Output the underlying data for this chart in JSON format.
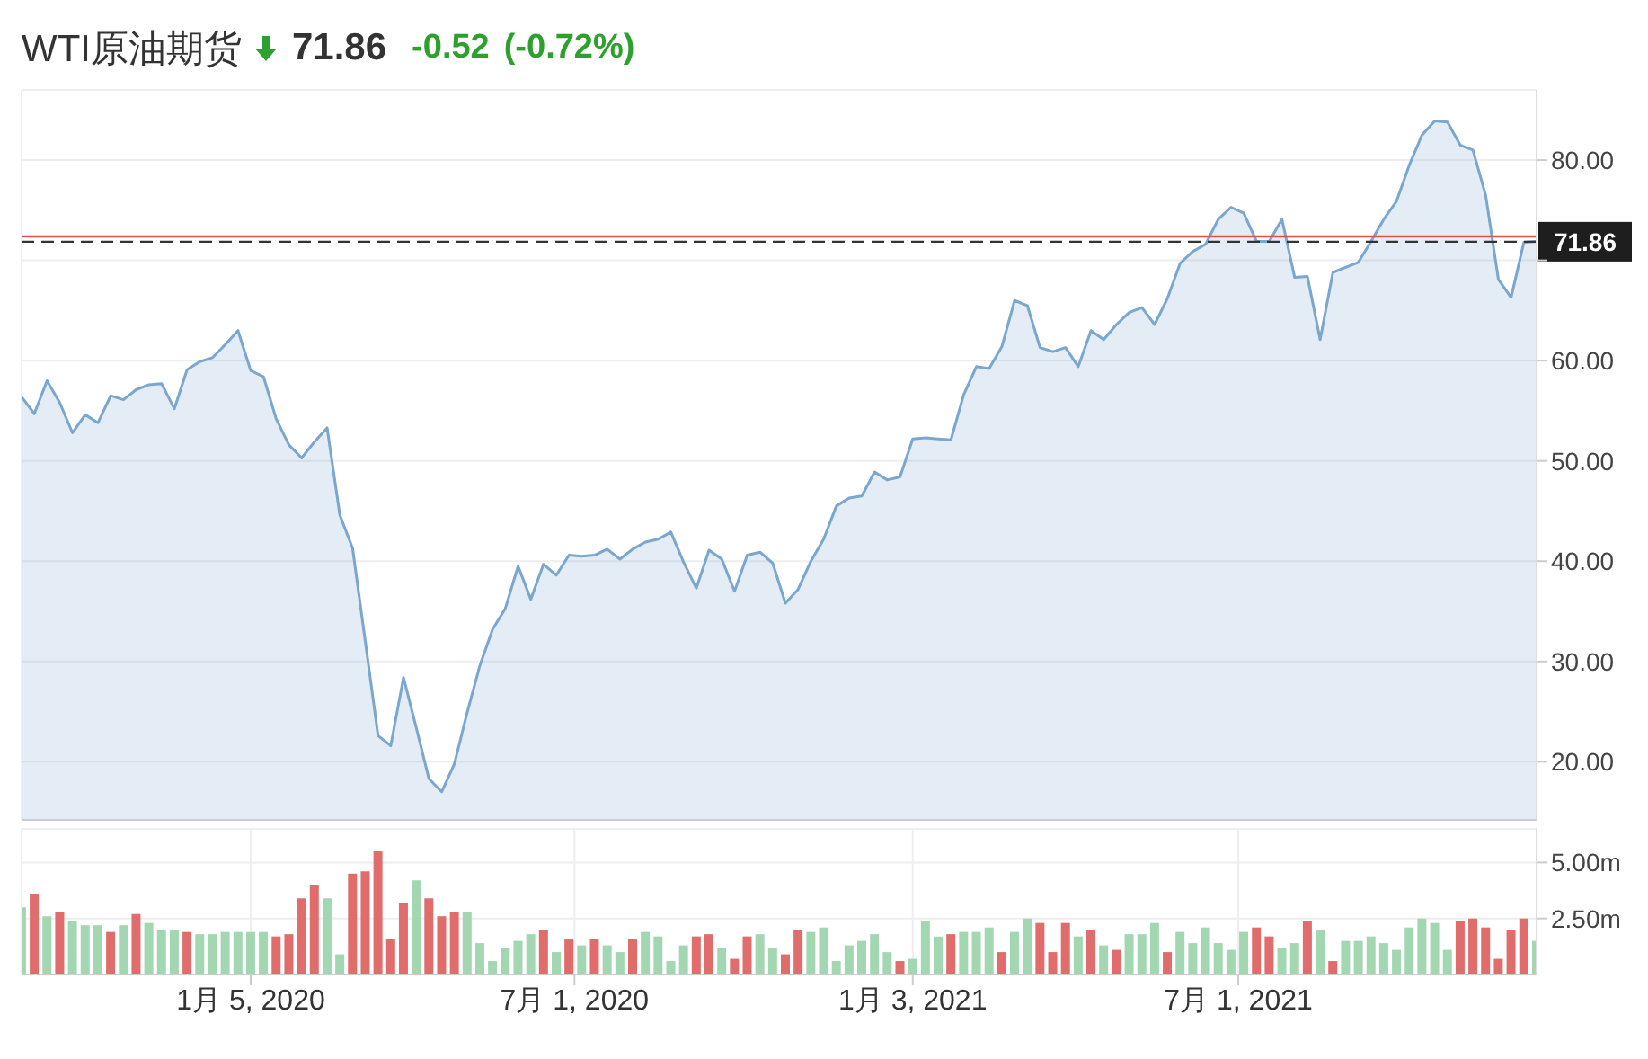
{
  "chart_data": [
    {
      "type": "area",
      "title": "WTI原油期货",
      "annotations": [
        "71.86",
        "-0.52",
        "(-0.72%)"
      ],
      "x": [
        "2019-09-01",
        "2019-09-08",
        "2019-09-15",
        "2019-09-22",
        "2019-09-29",
        "2019-10-06",
        "2019-10-13",
        "2019-10-20",
        "2019-10-27",
        "2019-11-03",
        "2019-11-10",
        "2019-11-17",
        "2019-11-24",
        "2019-12-01",
        "2019-12-08",
        "2019-12-15",
        "2019-12-22",
        "2019-12-29",
        "2020-01-05",
        "2020-01-12",
        "2020-01-19",
        "2020-01-26",
        "2020-02-02",
        "2020-02-09",
        "2020-02-16",
        "2020-02-23",
        "2020-03-01",
        "2020-03-08",
        "2020-03-15",
        "2020-03-22",
        "2020-03-29",
        "2020-04-05",
        "2020-04-12",
        "2020-04-19",
        "2020-04-26",
        "2020-05-03",
        "2020-05-10",
        "2020-05-17",
        "2020-05-24",
        "2020-05-31",
        "2020-06-07",
        "2020-06-14",
        "2020-06-21",
        "2020-06-28",
        "2020-07-05",
        "2020-07-12",
        "2020-07-19",
        "2020-07-26",
        "2020-08-02",
        "2020-08-09",
        "2020-08-16",
        "2020-08-23",
        "2020-08-30",
        "2020-09-06",
        "2020-09-13",
        "2020-09-20",
        "2020-09-27",
        "2020-10-04",
        "2020-10-11",
        "2020-10-18",
        "2020-10-25",
        "2020-11-01",
        "2020-11-08",
        "2020-11-15",
        "2020-11-22",
        "2020-11-29",
        "2020-12-06",
        "2020-12-13",
        "2020-12-20",
        "2020-12-27",
        "2021-01-03",
        "2021-01-10",
        "2021-01-17",
        "2021-01-24",
        "2021-01-31",
        "2021-02-07",
        "2021-02-14",
        "2021-02-21",
        "2021-02-28",
        "2021-03-07",
        "2021-03-14",
        "2021-03-21",
        "2021-03-28",
        "2021-04-04",
        "2021-04-11",
        "2021-04-18",
        "2021-04-25",
        "2021-05-02",
        "2021-05-09",
        "2021-05-16",
        "2021-05-23",
        "2021-05-30",
        "2021-06-06",
        "2021-06-13",
        "2021-06-20",
        "2021-06-27",
        "2021-07-04",
        "2021-07-11",
        "2021-07-18",
        "2021-07-25",
        "2021-08-01",
        "2021-08-08",
        "2021-08-15",
        "2021-08-22",
        "2021-08-29",
        "2021-09-05",
        "2021-09-12",
        "2021-09-19",
        "2021-09-26",
        "2021-10-03",
        "2021-10-10",
        "2021-10-17",
        "2021-10-24",
        "2021-10-31",
        "2021-11-07",
        "2021-11-14",
        "2021-11-21",
        "2021-11-28",
        "2021-12-05",
        "2021-12-12"
      ],
      "series": [
        {
          "color": "#7aa6cf",
          "values": [
            56.4,
            54.7,
            58.0,
            55.8,
            52.8,
            54.6,
            53.8,
            56.5,
            56.1,
            57.1,
            57.6,
            57.7,
            55.2,
            59.1,
            59.9,
            60.3,
            61.6,
            63.0,
            59.0,
            58.4,
            54.2,
            51.6,
            50.3,
            51.9,
            53.3,
            44.6,
            41.3,
            32.0,
            22.6,
            21.6,
            28.4,
            23.4,
            18.3,
            17.0,
            19.8,
            24.9,
            29.6,
            33.2,
            35.3,
            39.5,
            36.2,
            39.7,
            38.6,
            40.6,
            40.5,
            40.6,
            41.2,
            40.2,
            41.2,
            41.9,
            42.2,
            42.9,
            39.9,
            37.3,
            41.1,
            40.2,
            37.0,
            40.6,
            40.9,
            39.8,
            35.8,
            37.2,
            40.0,
            42.2,
            45.5,
            46.3,
            46.5,
            48.9,
            48.1,
            48.4,
            52.2,
            52.3,
            52.2,
            52.1,
            56.6,
            59.4,
            59.2,
            61.4,
            66.0,
            65.5,
            61.3,
            60.9,
            61.3,
            59.4,
            63.0,
            62.1,
            63.6,
            64.8,
            65.3,
            63.6,
            66.2,
            69.7,
            70.9,
            71.6,
            74.1,
            75.3,
            74.7,
            71.9,
            71.9,
            74.1,
            68.3,
            68.4,
            62.1,
            68.8,
            69.3,
            69.8,
            71.9,
            74.1,
            75.9,
            79.5,
            82.5,
            83.9,
            83.8,
            81.5,
            81.0,
            76.5,
            68.1,
            66.3,
            71.8,
            71.9
          ]
        }
      ],
      "xlim": [
        "2019-09-01",
        "2021-12-12"
      ],
      "xticks": [
        {
          "value": "2020-01-05",
          "label": null
        },
        {
          "value": "2020-07-01",
          "label": null
        },
        {
          "value": "2021-01-03",
          "label": null
        },
        {
          "value": "2021-07-01",
          "label": null
        }
      ],
      "ylim": [
        14.2,
        87
      ],
      "yticks": [
        {
          "value": 20,
          "label": "20.00"
        },
        {
          "value": 30,
          "label": "30.00"
        },
        {
          "value": 40,
          "label": "40.00"
        },
        {
          "value": 50,
          "label": "50.00"
        },
        {
          "value": 60,
          "label": "60.00"
        },
        {
          "value": 70,
          "label": null
        },
        {
          "value": 80,
          "label": "80.00"
        }
      ],
      "ref_lines": [
        {
          "axis": "y",
          "value": 72.38,
          "color": "#d9534f"
        },
        {
          "axis": "y",
          "value": 71.86,
          "label": "71.86",
          "color": "#333333",
          "line_style": "dashed"
        }
      ],
      "grid": true,
      "tick_labels": "y"
    },
    {
      "type": "bar",
      "x": [
        "2019-09-01",
        "2019-09-08",
        "2019-09-15",
        "2019-09-22",
        "2019-09-29",
        "2019-10-06",
        "2019-10-13",
        "2019-10-20",
        "2019-10-27",
        "2019-11-03",
        "2019-11-10",
        "2019-11-17",
        "2019-11-24",
        "2019-12-01",
        "2019-12-08",
        "2019-12-15",
        "2019-12-22",
        "2019-12-29",
        "2020-01-05",
        "2020-01-12",
        "2020-01-19",
        "2020-01-26",
        "2020-02-02",
        "2020-02-09",
        "2020-02-16",
        "2020-02-23",
        "2020-03-01",
        "2020-03-08",
        "2020-03-15",
        "2020-03-22",
        "2020-03-29",
        "2020-04-05",
        "2020-04-12",
        "2020-04-19",
        "2020-04-26",
        "2020-05-03",
        "2020-05-10",
        "2020-05-17",
        "2020-05-24",
        "2020-05-31",
        "2020-06-07",
        "2020-06-14",
        "2020-06-21",
        "2020-06-28",
        "2020-07-05",
        "2020-07-12",
        "2020-07-19",
        "2020-07-26",
        "2020-08-02",
        "2020-08-09",
        "2020-08-16",
        "2020-08-23",
        "2020-08-30",
        "2020-09-06",
        "2020-09-13",
        "2020-09-20",
        "2020-09-27",
        "2020-10-04",
        "2020-10-11",
        "2020-10-18",
        "2020-10-25",
        "2020-11-01",
        "2020-11-08",
        "2020-11-15",
        "2020-11-22",
        "2020-11-29",
        "2020-12-06",
        "2020-12-13",
        "2020-12-20",
        "2020-12-27",
        "2021-01-03",
        "2021-01-10",
        "2021-01-17",
        "2021-01-24",
        "2021-01-31",
        "2021-02-07",
        "2021-02-14",
        "2021-02-21",
        "2021-02-28",
        "2021-03-07",
        "2021-03-14",
        "2021-03-21",
        "2021-03-28",
        "2021-04-04",
        "2021-04-11",
        "2021-04-18",
        "2021-04-25",
        "2021-05-02",
        "2021-05-09",
        "2021-05-16",
        "2021-05-23",
        "2021-05-30",
        "2021-06-06",
        "2021-06-13",
        "2021-06-20",
        "2021-06-27",
        "2021-07-04",
        "2021-07-11",
        "2021-07-18",
        "2021-07-25",
        "2021-08-01",
        "2021-08-08",
        "2021-08-15",
        "2021-08-22",
        "2021-08-29",
        "2021-09-05",
        "2021-09-12",
        "2021-09-19",
        "2021-09-26",
        "2021-10-03",
        "2021-10-10",
        "2021-10-17",
        "2021-10-24",
        "2021-10-31",
        "2021-11-07",
        "2021-11-14",
        "2021-11-21",
        "2021-11-28",
        "2021-12-05",
        "2021-12-12"
      ],
      "values": [
        3.0,
        3.6,
        2.6,
        2.8,
        2.4,
        2.2,
        2.2,
        1.9,
        2.2,
        2.7,
        2.3,
        2.0,
        2.0,
        1.9,
        1.8,
        1.8,
        1.9,
        1.9,
        1.9,
        1.9,
        1.7,
        1.8,
        3.4,
        4.0,
        3.4,
        0.9,
        4.5,
        4.6,
        5.5,
        1.6,
        3.2,
        4.2,
        3.4,
        2.6,
        2.8,
        2.8,
        1.4,
        0.6,
        1.2,
        1.5,
        1.8,
        2.0,
        1.0,
        1.6,
        1.3,
        1.6,
        1.3,
        1.0,
        1.6,
        1.9,
        1.7,
        0.6,
        1.3,
        1.7,
        1.8,
        1.2,
        0.7,
        1.7,
        1.8,
        1.2,
        0.9,
        2.0,
        1.9,
        2.1,
        0.6,
        1.3,
        1.5,
        1.8,
        1.0,
        0.6,
        0.7,
        2.4,
        1.7,
        1.8,
        1.9,
        1.9,
        2.1,
        1.0,
        1.9,
        2.5,
        2.3,
        1.0,
        2.3,
        1.7,
        2.0,
        1.3,
        1.1,
        1.8,
        1.8,
        2.3,
        1.0,
        1.9,
        1.4,
        2.1,
        1.4,
        1.1,
        1.9,
        2.1,
        1.7,
        1.2,
        1.4,
        2.4,
        2.0,
        0.6,
        1.5,
        1.5,
        1.7,
        1.4,
        1.1,
        2.1,
        2.5,
        2.3,
        1.1,
        2.4,
        2.5,
        2.1,
        0.7,
        2.0,
        2.5,
        1.5
      ],
      "colors": [
        "#a3d7b2",
        "#e06c6c",
        "#a3d7b2",
        "#e06c6c",
        "#a3d7b2",
        "#a3d7b2",
        "#a3d7b2",
        "#e06c6c",
        "#a3d7b2",
        "#e06c6c",
        "#a3d7b2",
        "#a3d7b2",
        "#a3d7b2",
        "#e06c6c",
        "#a3d7b2",
        "#a3d7b2",
        "#a3d7b2",
        "#a3d7b2",
        "#a3d7b2",
        "#a3d7b2",
        "#e06c6c",
        "#e06c6c",
        "#e06c6c",
        "#e06c6c",
        "#a3d7b2",
        "#a3d7b2",
        "#e06c6c",
        "#e06c6c",
        "#e06c6c",
        "#e06c6c",
        "#e06c6c",
        "#a3d7b2",
        "#e06c6c",
        "#e06c6c",
        "#e06c6c",
        "#a3d7b2",
        "#a3d7b2",
        "#a3d7b2",
        "#a3d7b2",
        "#a3d7b2",
        "#a3d7b2",
        "#e06c6c",
        "#a3d7b2",
        "#e06c6c",
        "#a3d7b2",
        "#e06c6c",
        "#a3d7b2",
        "#a3d7b2",
        "#e06c6c",
        "#a3d7b2",
        "#a3d7b2",
        "#a3d7b2",
        "#a3d7b2",
        "#e06c6c",
        "#e06c6c",
        "#a3d7b2",
        "#e06c6c",
        "#e06c6c",
        "#a3d7b2",
        "#a3d7b2",
        "#e06c6c",
        "#e06c6c",
        "#a3d7b2",
        "#a3d7b2",
        "#a3d7b2",
        "#a3d7b2",
        "#a3d7b2",
        "#a3d7b2",
        "#a3d7b2",
        "#e06c6c",
        "#a3d7b2",
        "#a3d7b2",
        "#a3d7b2",
        "#e06c6c",
        "#a3d7b2",
        "#a3d7b2",
        "#a3d7b2",
        "#e06c6c",
        "#a3d7b2",
        "#a3d7b2",
        "#e06c6c",
        "#e06c6c",
        "#e06c6c",
        "#a3d7b2",
        "#e06c6c",
        "#a3d7b2",
        "#e06c6c",
        "#a3d7b2",
        "#a3d7b2",
        "#a3d7b2",
        "#e06c6c",
        "#a3d7b2",
        "#a3d7b2",
        "#a3d7b2",
        "#a3d7b2",
        "#a3d7b2",
        "#a3d7b2",
        "#e06c6c",
        "#e06c6c",
        "#a3d7b2",
        "#a3d7b2",
        "#e06c6c",
        "#a3d7b2",
        "#e06c6c",
        "#a3d7b2",
        "#a3d7b2",
        "#a3d7b2",
        "#a3d7b2",
        "#a3d7b2",
        "#a3d7b2",
        "#a3d7b2",
        "#a3d7b2",
        "#a3d7b2",
        "#e06c6c",
        "#e06c6c",
        "#e06c6c",
        "#e06c6c",
        "#e06c6c",
        "#e06c6c",
        "#a3d7b2"
      ],
      "xlim": [
        "2019-09-01",
        "2021-12-12"
      ],
      "xticks": [
        {
          "value": "2020-01-05",
          "label": "1月 5, 2020"
        },
        {
          "value": "2020-07-01",
          "label": "7月 1, 2020"
        },
        {
          "value": "2021-01-03",
          "label": "1月 3, 2021"
        },
        {
          "value": "2021-07-01",
          "label": "7月 1, 2021"
        }
      ],
      "ylim": [
        0,
        6.5
      ],
      "yticks": [
        {
          "value": 2.5,
          "label": "2.50m"
        },
        {
          "value": 5,
          "label": "5.00m"
        }
      ],
      "grid": true
    }
  ]
}
